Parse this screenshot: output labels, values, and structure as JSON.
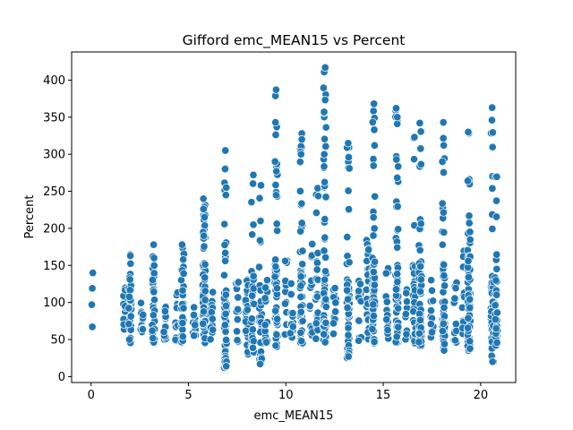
{
  "chart_data": {
    "type": "scatter",
    "title": "Gifford emc_MEAN15 vs Percent",
    "xlabel": "emc_MEAN15",
    "ylabel": "Percent",
    "xlim": [
      -1.0,
      21.8
    ],
    "ylim": [
      -8,
      438
    ],
    "xticks": [
      0,
      5,
      10,
      15,
      20
    ],
    "yticks": [
      0,
      50,
      100,
      150,
      200,
      250,
      300,
      350,
      400
    ],
    "grid": false,
    "legend": "none",
    "marker_color": "#1f77b4",
    "columns": [
      {
        "x": 0.05,
        "ymin": 67,
        "ymax": 140,
        "density": "sparse",
        "extras": [
          67,
          97,
          119,
          140
        ]
      },
      {
        "x": 1.7,
        "ymin": 60,
        "ymax": 125,
        "density": "low"
      },
      {
        "x": 2.0,
        "ymin": 45,
        "ymax": 165,
        "density": "medium",
        "extras": [
          163,
          131
        ]
      },
      {
        "x": 2.6,
        "ymin": 60,
        "ymax": 100,
        "density": "low"
      },
      {
        "x": 3.2,
        "ymin": 45,
        "ymax": 180,
        "density": "medium",
        "extras": [
          178,
          160
        ]
      },
      {
        "x": 3.8,
        "ymin": 48,
        "ymax": 95,
        "density": "low"
      },
      {
        "x": 4.4,
        "ymin": 48,
        "ymax": 115,
        "density": "low"
      },
      {
        "x": 4.7,
        "ymin": 45,
        "ymax": 180,
        "density": "medium",
        "extras": [
          178,
          158
        ]
      },
      {
        "x": 5.3,
        "ymin": 55,
        "ymax": 95,
        "density": "low"
      },
      {
        "x": 5.8,
        "ymin": 45,
        "ymax": 240,
        "density": "high",
        "extras": [
          240,
          226,
          215,
          190
        ]
      },
      {
        "x": 6.2,
        "ymin": 50,
        "ymax": 120,
        "density": "low"
      },
      {
        "x": 6.9,
        "ymin": 12,
        "ymax": 305,
        "density": "high",
        "extras": [
          305,
          280,
          255,
          245,
          14
        ]
      },
      {
        "x": 7.5,
        "ymin": 45,
        "ymax": 130,
        "density": "low"
      },
      {
        "x": 8.0,
        "ymin": 30,
        "ymax": 150,
        "density": "medium"
      },
      {
        "x": 8.3,
        "ymin": 30,
        "ymax": 272,
        "density": "medium",
        "extras": [
          272,
          205
        ]
      },
      {
        "x": 8.7,
        "ymin": 17,
        "ymax": 258,
        "density": "medium",
        "extras": [
          258,
          210,
          17
        ]
      },
      {
        "x": 9.0,
        "ymin": 45,
        "ymax": 140,
        "density": "low"
      },
      {
        "x": 9.5,
        "ymin": 40,
        "ymax": 387,
        "density": "high",
        "extras": [
          387,
          343,
          277
        ]
      },
      {
        "x": 10.0,
        "ymin": 55,
        "ymax": 170,
        "density": "low"
      },
      {
        "x": 10.3,
        "ymin": 50,
        "ymax": 130,
        "density": "low"
      },
      {
        "x": 10.8,
        "ymin": 45,
        "ymax": 328,
        "density": "high",
        "extras": [
          328,
          320,
          300
        ]
      },
      {
        "x": 11.3,
        "ymin": 55,
        "ymax": 200,
        "density": "low"
      },
      {
        "x": 11.6,
        "ymin": 50,
        "ymax": 260,
        "density": "medium"
      },
      {
        "x": 12.0,
        "ymin": 45,
        "ymax": 417,
        "density": "high",
        "extras": [
          417,
          357,
          300
        ]
      },
      {
        "x": 12.5,
        "ymin": 55,
        "ymax": 120,
        "density": "low"
      },
      {
        "x": 13.2,
        "ymin": 25,
        "ymax": 315,
        "density": "high",
        "extras": [
          315,
          27
        ]
      },
      {
        "x": 13.8,
        "ymin": 45,
        "ymax": 130,
        "density": "low"
      },
      {
        "x": 14.2,
        "ymin": 50,
        "ymax": 240,
        "density": "medium"
      },
      {
        "x": 14.5,
        "ymin": 35,
        "ymax": 368,
        "density": "high",
        "extras": [
          368,
          333
        ]
      },
      {
        "x": 15.2,
        "ymin": 50,
        "ymax": 150,
        "density": "low"
      },
      {
        "x": 15.7,
        "ymin": 45,
        "ymax": 362,
        "density": "high",
        "extras": [
          362,
          350
        ]
      },
      {
        "x": 16.2,
        "ymin": 50,
        "ymax": 120,
        "density": "low"
      },
      {
        "x": 16.6,
        "ymin": 45,
        "ymax": 325,
        "density": "medium",
        "extras": [
          323
        ]
      },
      {
        "x": 16.9,
        "ymin": 40,
        "ymax": 342,
        "density": "high",
        "extras": [
          342
        ]
      },
      {
        "x": 17.5,
        "ymin": 50,
        "ymax": 140,
        "density": "low"
      },
      {
        "x": 18.1,
        "ymin": 35,
        "ymax": 343,
        "density": "high",
        "extras": [
          343
        ]
      },
      {
        "x": 18.7,
        "ymin": 45,
        "ymax": 135,
        "density": "low"
      },
      {
        "x": 19.1,
        "ymin": 45,
        "ymax": 225,
        "density": "low"
      },
      {
        "x": 19.4,
        "ymin": 35,
        "ymax": 330,
        "density": "high",
        "extras": [
          330
        ]
      },
      {
        "x": 20.6,
        "ymin": 20,
        "ymax": 363,
        "density": "high",
        "extras": [
          363,
          28,
          20
        ]
      },
      {
        "x": 20.8,
        "ymin": 40,
        "ymax": 300,
        "density": "medium"
      }
    ]
  }
}
